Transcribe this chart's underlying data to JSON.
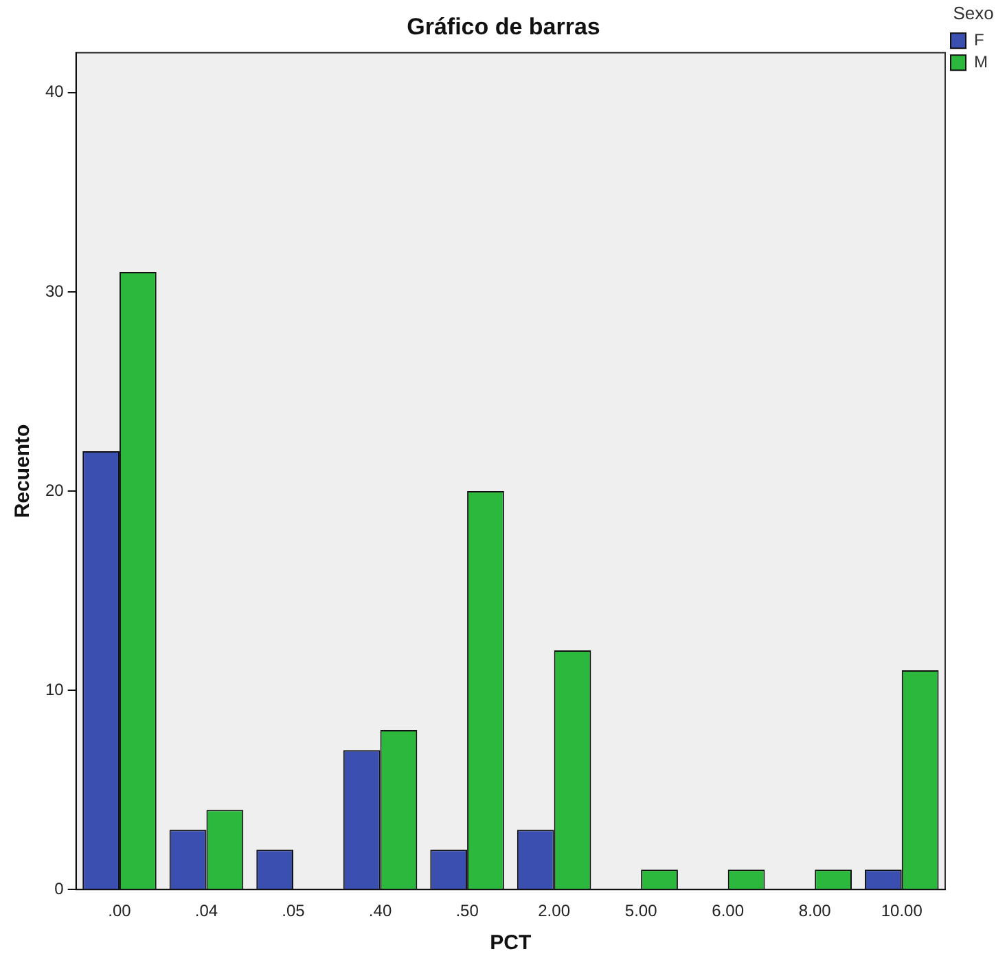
{
  "chart_data": {
    "type": "bar",
    "title": "Gráfico de barras",
    "xlabel": "PCT",
    "ylabel": "Recuento",
    "legend_title": "Sexo",
    "legend": "top right",
    "grid": false,
    "categories": [
      ".00",
      ".04",
      ".05",
      ".40",
      ".50",
      "2.00",
      "5.00",
      "6.00",
      "8.00",
      "10.00"
    ],
    "series": [
      {
        "name": "F",
        "color": "#3a4fb0",
        "values": [
          22,
          3,
          2,
          7,
          2,
          3,
          0,
          0,
          0,
          1
        ]
      },
      {
        "name": "M",
        "color": "#2bb83d",
        "values": [
          31,
          4,
          0,
          8,
          20,
          12,
          1,
          1,
          1,
          11
        ]
      }
    ],
    "ylim": [
      0,
      42
    ],
    "yticks": [
      0,
      10,
      20,
      30,
      40
    ]
  }
}
